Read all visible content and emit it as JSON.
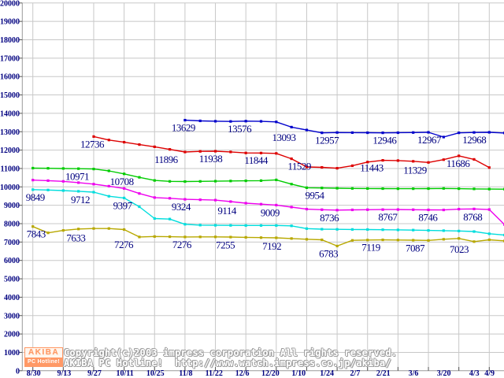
{
  "page": {
    "background": "#ffffff"
  },
  "chart_data": {
    "type": "line",
    "title": "",
    "legend": "none",
    "grid": true,
    "colors": {
      "gridline": "#c8c8c8",
      "axis": "#999999",
      "tick": "#555555",
      "label_text": "#000080"
    },
    "y_axis": {
      "min": 0,
      "max": 20000,
      "step": 1000,
      "tick_labels": [
        "0",
        "1000",
        "2000",
        "3000",
        "4000",
        "5000",
        "6000",
        "7000",
        "8000",
        "9000",
        "10000",
        "11000",
        "12000",
        "13000",
        "14000",
        "15000",
        "16000",
        "17000",
        "18000",
        "19000",
        "20000"
      ]
    },
    "x_axis": {
      "ticks": [
        {
          "label": "8/30",
          "t": 0
        },
        {
          "label": "9/13",
          "t": 1
        },
        {
          "label": "9/27",
          "t": 2
        },
        {
          "label": "10/11",
          "t": 3
        },
        {
          "label": "10/25",
          "t": 4
        },
        {
          "label": "11/8",
          "t": 5
        },
        {
          "label": "11/22",
          "t": 6
        },
        {
          "label": "12/6",
          "t": 7
        },
        {
          "label": "12/20",
          "t": 8
        },
        {
          "label": "1/10",
          "t": 9
        },
        {
          "label": "1/24",
          "t": 10
        },
        {
          "label": "2/7",
          "t": 11
        },
        {
          "label": "2/21",
          "t": 12
        },
        {
          "label": "3/6",
          "t": 13
        },
        {
          "label": "3/20",
          "t": 14
        },
        {
          "label": "4/3",
          "t": 15
        },
        {
          "label": "4/9",
          "t": 15.5
        }
      ]
    },
    "series": [
      {
        "name": "series-blue",
        "color": "#0000cc",
        "start_t": 5,
        "step_t": 0.5,
        "values": [
          13629,
          13590,
          13570,
          13560,
          13576,
          13565,
          13534,
          13250,
          13093,
          12940,
          12957,
          12950,
          12945,
          12940,
          12946,
          12955,
          12967,
          12710,
          12940,
          12960,
          12968,
          12930
        ],
        "point_labels": [
          {
            "text": "13629",
            "t": 5,
            "dx": -2
          },
          {
            "text": "13576",
            "t": 7,
            "dx": -8
          },
          {
            "text": "13093",
            "t": 9,
            "dx": -29
          },
          {
            "text": "12957",
            "t": 10,
            "dx": -13
          },
          {
            "text": "12946",
            "t": 12,
            "dx": -17
          },
          {
            "text": "12967",
            "t": 13,
            "dx": 1
          },
          {
            "text": "12968",
            "t": 15,
            "dx": -19
          }
        ]
      },
      {
        "name": "series-red",
        "color": "#dd0000",
        "start_t": 2,
        "step_t": 0.5,
        "values": [
          12736,
          12550,
          12430,
          12300,
          12180,
          12040,
          11896,
          11930,
          11938,
          11900,
          11844,
          11840,
          11820,
          11529,
          11085,
          11060,
          11013,
          11150,
          11350,
          11443,
          11430,
          11390,
          11329,
          11480,
          11686,
          11495,
          11050
        ],
        "point_labels": [
          {
            "text": "12736",
            "t": 2,
            "dx": -2
          },
          {
            "text": "11896",
            "t": 5,
            "dx": -24
          },
          {
            "text": "11938",
            "t": 6,
            "dx": -6
          },
          {
            "text": "11844",
            "t": 7,
            "dx": 13
          },
          {
            "text": "11529",
            "t": 8.5,
            "dx": 10
          },
          {
            "text": "11443",
            "t": 11.5,
            "dx": -14
          },
          {
            "text": "11329",
            "t": 13,
            "dx": -17
          },
          {
            "text": "11686",
            "t": 14,
            "dx": -1
          }
        ]
      },
      {
        "name": "series-green",
        "color": "#00cc00",
        "start_t": 0,
        "step_t": 0.5,
        "values": [
          11020,
          11010,
          11000,
          10990,
          10971,
          10870,
          10708,
          10520,
          10350,
          10300,
          10290,
          10300,
          10310,
          10320,
          10330,
          10340,
          10380,
          10150,
          9954,
          9940,
          9927,
          9915,
          9910,
          9905,
          9900,
          9900,
          9905,
          9915,
          9902,
          9890,
          9880,
          9875
        ],
        "point_labels": [
          {
            "text": "10971",
            "t": 2,
            "dx": -21
          },
          {
            "text": "10708",
            "t": 3,
            "dx": -3
          },
          {
            "text": "9954",
            "t": 9,
            "dx": 10
          }
        ]
      },
      {
        "name": "series-magenta",
        "color": "#ee00ee",
        "start_t": 0,
        "step_t": 0.5,
        "values": [
          10370,
          10340,
          10300,
          10230,
          10150,
          10040,
          9915,
          9640,
          9419,
          9380,
          9324,
          9300,
          9280,
          9200,
          9114,
          9060,
          9009,
          8900,
          8790,
          8760,
          8736,
          8750,
          8760,
          8765,
          8767,
          8760,
          8750,
          8746,
          8790,
          8800,
          8768,
          7950
        ],
        "point_labels": [
          {
            "text": "9324",
            "t": 5,
            "dx": -5
          },
          {
            "text": "9114",
            "t": 7,
            "dx": -24
          },
          {
            "text": "9009",
            "t": 8,
            "dx": -8
          },
          {
            "text": "8736",
            "t": 10,
            "dx": -10
          },
          {
            "text": "8767",
            "t": 12,
            "dx": -13
          },
          {
            "text": "8746",
            "t": 13.5,
            "dx": -20
          },
          {
            "text": "8768",
            "t": 15,
            "dx": -21
          }
        ]
      },
      {
        "name": "series-cyan",
        "color": "#00dddd",
        "start_t": 0,
        "step_t": 0.5,
        "values": [
          9849,
          9830,
          9800,
          9760,
          9712,
          9490,
          9397,
          8920,
          8280,
          8250,
          7966,
          7920,
          7910,
          7905,
          7900,
          7900,
          7900,
          7880,
          7730,
          7700,
          7690,
          7685,
          7680,
          7670,
          7660,
          7650,
          7630,
          7620,
          7600,
          7570,
          7450,
          7380
        ],
        "point_labels": [
          {
            "text": "9849",
            "t": 0,
            "dx": 3
          },
          {
            "text": "9712",
            "t": 2,
            "dx": -17
          },
          {
            "text": "9397",
            "t": 3,
            "dx": -2
          }
        ]
      },
      {
        "name": "series-olive",
        "color": "#b8a800",
        "start_t": 0,
        "step_t": 0.5,
        "values": [
          7843,
          7500,
          7633,
          7710,
          7736,
          7736,
          7680,
          7276,
          7300,
          7290,
          7276,
          7280,
          7280,
          7270,
          7255,
          7240,
          7230,
          7192,
          7150,
          7120,
          6783,
          7090,
          7110,
          7119,
          7110,
          7100,
          7087,
          7150,
          7196,
          7023,
          7123,
          7060
        ],
        "point_labels": [
          {
            "text": "7843",
            "t": 0,
            "dx": 4
          },
          {
            "text": "7633",
            "t": 1,
            "dx": 16
          },
          {
            "text": "7276",
            "t": 3.5,
            "dx": -20
          },
          {
            "text": "7276",
            "t": 5,
            "dx": -4
          },
          {
            "text": "7255",
            "t": 7,
            "dx": -26
          },
          {
            "text": "7192",
            "t": 8.5,
            "dx": -25
          },
          {
            "text": "6783",
            "t": 10,
            "dx": -11
          },
          {
            "text": "7119",
            "t": 11.5,
            "dx": -15
          },
          {
            "text": "7087",
            "t": 13,
            "dx": -17
          },
          {
            "text": "7023",
            "t": 14.5,
            "dx": -19
          }
        ]
      }
    ]
  },
  "branding": {
    "logo": {
      "line1": "AKIBA",
      "line2": "PC Hotline!",
      "accent_color": "#ff9966"
    },
    "copyright_line1": "Copyright(c)2003 impress corporation All rights reserved.",
    "copyright_line2": "AKIBA PC Hotline!  http://www.watch.impress.co.jp/akiba/"
  }
}
